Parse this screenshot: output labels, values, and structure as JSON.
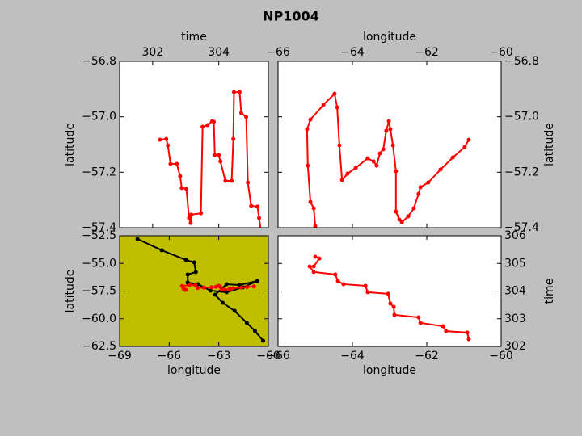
{
  "title": "NP1004",
  "chart_data": [
    {
      "type": "line",
      "xlabel": "time",
      "ylabel": "latitude",
      "xaxis_position": "top",
      "yaxis_position": "left",
      "facecolor": "#ffffff",
      "xlim": [
        301,
        305.5
      ],
      "xticks": [
        302,
        304
      ],
      "ylim": [
        -57.4,
        -56.8
      ],
      "yticks": [
        {
          "value": -56.8,
          "label": "−56.8"
        },
        {
          "value": -57.0,
          "label": "−57.0"
        },
        {
          "value": -57.2,
          "label": "−57.2"
        },
        {
          "value": -57.4,
          "label": "−57.4"
        }
      ],
      "series": [
        {
          "color": "#ff0000",
          "x": [
            302.22,
            302.41,
            302.46,
            302.54,
            302.73,
            302.83,
            302.88,
            303.02,
            303.1,
            303.15,
            303.17,
            303.46,
            303.51,
            303.66,
            303.8,
            303.85,
            303.88,
            304.0,
            304.05,
            304.2,
            304.39,
            304.44,
            304.46,
            304.63,
            304.68,
            304.83,
            304.88,
            304.98,
            305.17,
            305.22,
            305.27
          ],
          "values": [
            -57.083,
            -57.08,
            -57.103,
            -57.17,
            -57.17,
            -57.214,
            -57.257,
            -57.26,
            -57.365,
            -57.383,
            -57.353,
            -57.348,
            -57.036,
            -57.03,
            -57.016,
            -57.018,
            -57.138,
            -57.138,
            -57.161,
            -57.231,
            -57.231,
            -57.08,
            -56.911,
            -56.911,
            -56.986,
            -57.001,
            -57.237,
            -57.321,
            -57.324,
            -57.365,
            -57.406
          ]
        }
      ]
    },
    {
      "type": "line",
      "xlabel": "longitude",
      "ylabel": "latitude",
      "xaxis_position": "top",
      "yaxis_position": "right",
      "facecolor": "#ffffff",
      "xlim": [
        -66,
        -60
      ],
      "xticks": [
        {
          "value": -66,
          "label": "−66"
        },
        {
          "value": -64,
          "label": "−64"
        },
        {
          "value": -62,
          "label": "−62"
        },
        {
          "value": -60,
          "label": "−60"
        }
      ],
      "ylim": [
        -57.4,
        -56.8
      ],
      "yticks": [
        {
          "value": -56.8,
          "label": "−56.8"
        },
        {
          "value": -57.0,
          "label": "−57.0"
        },
        {
          "value": -57.2,
          "label": "−57.2"
        },
        {
          "value": -57.4,
          "label": "−57.4"
        }
      ],
      "series": [
        {
          "color": "#ff0000",
          "x": [
            -65.0,
            -65.04,
            -65.13,
            -65.2,
            -65.22,
            -65.13,
            -64.78,
            -64.48,
            -64.41,
            -64.35,
            -64.28,
            -64.13,
            -63.91,
            -63.59,
            -63.43,
            -63.35,
            -63.26,
            -63.17,
            -63.09,
            -63.02,
            -62.98,
            -62.91,
            -62.83,
            -62.83,
            -62.74,
            -62.67,
            -62.5,
            -62.35,
            -62.22,
            -62.17,
            -61.96,
            -61.63,
            -61.3,
            -60.98,
            -60.87
          ],
          "values": [
            -57.394,
            -57.33,
            -57.307,
            -57.176,
            -57.045,
            -57.01,
            -56.957,
            -56.917,
            -56.966,
            -57.103,
            -57.228,
            -57.205,
            -57.184,
            -57.15,
            -57.161,
            -57.176,
            -57.132,
            -57.117,
            -57.05,
            -57.016,
            -57.045,
            -57.103,
            -57.196,
            -57.342,
            -57.371,
            -57.38,
            -57.359,
            -57.33,
            -57.278,
            -57.254,
            -57.237,
            -57.19,
            -57.147,
            -57.109,
            -57.083
          ]
        }
      ]
    },
    {
      "type": "line",
      "xlabel": "longitude",
      "ylabel": "latitude",
      "xaxis_position": "bottom",
      "yaxis_position": "left",
      "facecolor": "#bfbf00",
      "xlim": [
        -69,
        -60
      ],
      "xticks": [
        {
          "value": -69,
          "label": "−69"
        },
        {
          "value": -66,
          "label": "−66"
        },
        {
          "value": -63,
          "label": "−63"
        },
        {
          "value": -60,
          "label": "−60"
        }
      ],
      "ylim": [
        -62.5,
        -52.5
      ],
      "yticks": [
        {
          "value": -52.5,
          "label": "−52.5"
        },
        {
          "value": -55.0,
          "label": "−55.0"
        },
        {
          "value": -57.5,
          "label": "−57.5"
        },
        {
          "value": -60.0,
          "label": "−60.0"
        },
        {
          "value": -62.5,
          "label": "−62.5"
        }
      ],
      "series": [
        {
          "color": "#000000",
          "x": [
            -67.92,
            -66.45,
            -64.98,
            -64.49,
            -64.39,
            -64.88,
            -64.88,
            -64.25,
            -63.51,
            -62.53,
            -61.55,
            -60.67,
            -61.75,
            -62.53,
            -63.22,
            -62.77,
            -62.04,
            -61.3,
            -60.81,
            -60.32
          ],
          "values": [
            -52.79,
            -53.81,
            -54.69,
            -54.91,
            -55.78,
            -56.0,
            -56.73,
            -56.88,
            -57.46,
            -57.61,
            -57.17,
            -56.59,
            -56.95,
            -56.88,
            -57.83,
            -58.56,
            -59.29,
            -60.38,
            -61.11,
            -61.99
          ]
        },
        {
          "color": "#ff0000",
          "x": [
            -65.0,
            -65.13,
            -65.22,
            -64.78,
            -64.41,
            -64.28,
            -63.91,
            -63.43,
            -63.17,
            -63.02,
            -62.91,
            -62.83,
            -62.67,
            -62.35,
            -62.17,
            -61.63,
            -61.3,
            -60.87
          ],
          "values": [
            -57.394,
            -57.307,
            -57.045,
            -56.957,
            -56.966,
            -57.228,
            -57.184,
            -57.161,
            -57.117,
            -57.016,
            -57.103,
            -57.342,
            -57.38,
            -57.33,
            -57.254,
            -57.19,
            -57.147,
            -57.083
          ]
        }
      ]
    },
    {
      "type": "line",
      "xlabel": "longitude",
      "ylabel": "time",
      "xaxis_position": "bottom",
      "yaxis_position": "right",
      "facecolor": "#ffffff",
      "xlim": [
        -66,
        -60
      ],
      "xticks": [
        {
          "value": -66,
          "label": "−66"
        },
        {
          "value": -64,
          "label": "−64"
        },
        {
          "value": -62,
          "label": "−62"
        },
        {
          "value": -60,
          "label": "−60"
        }
      ],
      "ylim": [
        302,
        306
      ],
      "yticks": [
        302,
        303,
        304,
        305,
        306
      ],
      "series": [
        {
          "color": "#ff0000",
          "x": [
            -65.0,
            -64.89,
            -65.04,
            -65.15,
            -65.04,
            -64.46,
            -64.39,
            -64.24,
            -63.65,
            -63.59,
            -63.04,
            -62.98,
            -62.89,
            -62.87,
            -62.22,
            -62.17,
            -61.57,
            -61.48,
            -60.91,
            -60.87
          ],
          "values": [
            305.24,
            305.18,
            304.89,
            304.89,
            304.69,
            304.6,
            304.36,
            304.25,
            304.19,
            303.96,
            303.9,
            303.55,
            303.43,
            303.14,
            303.05,
            302.85,
            302.73,
            302.55,
            302.5,
            302.26
          ]
        }
      ]
    }
  ]
}
